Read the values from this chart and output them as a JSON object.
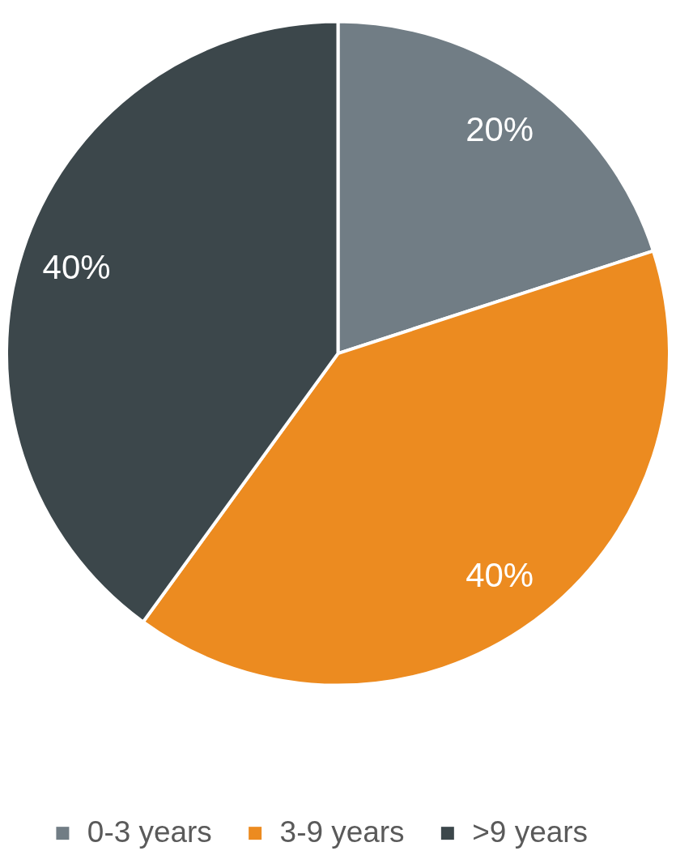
{
  "chart_data": {
    "type": "pie",
    "categories": [
      "0-3 years",
      "3-9 years",
      ">9 years"
    ],
    "values": [
      20,
      40,
      40
    ],
    "colors": [
      "#717d85",
      "#ec8b20",
      "#3c474b"
    ],
    "value_labels": [
      "20%",
      "40%",
      "40%"
    ],
    "legend": "bottom"
  }
}
